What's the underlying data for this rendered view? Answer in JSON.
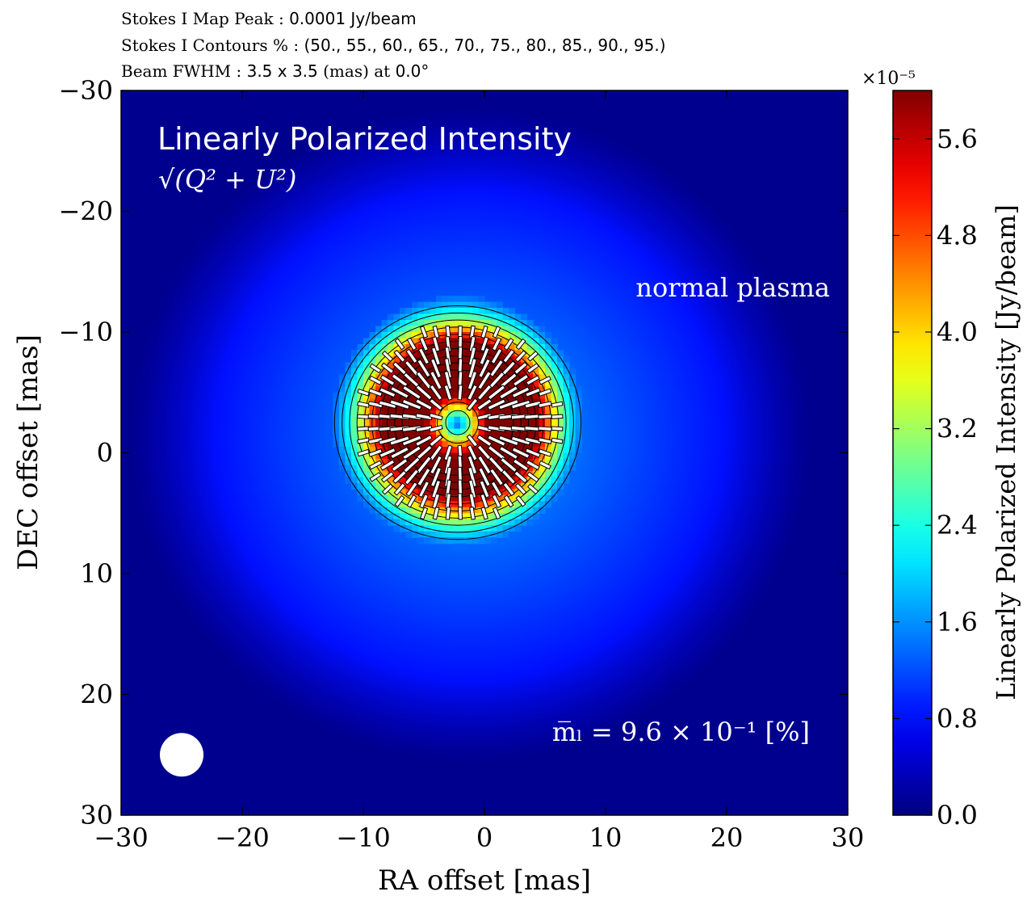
{
  "header": {
    "line1_label": "Stokes I Map Peak :",
    "line1_value": "0.0001 Jy/beam",
    "line2_label": "Stokes I Contours % :",
    "line2_value": "(50., 55., 60., 65., 70., 75., 80., 85., 90., 95.)",
    "line3_label": "Beam FWHM :",
    "line3_value": "3.5 x 3.5",
    "line3_unit": "(mas) at",
    "line3_angle": "0.0°"
  },
  "chart_data": {
    "type": "heatmap",
    "title": "Linearly Polarized Intensity",
    "formula": "√(Q² + U²)",
    "xlabel": "RA offset [mas]",
    "ylabel": "DEC offset [mas]",
    "xlim": [
      -30,
      30
    ],
    "ylim": [
      -30,
      30
    ],
    "y_inverted": true,
    "xticks": [
      -30,
      -20,
      -10,
      0,
      10,
      20,
      30
    ],
    "yticks": [
      -30,
      -20,
      -10,
      0,
      10,
      20,
      30
    ],
    "xtick_labels": [
      "−30",
      "−20",
      "−10",
      "0",
      "10",
      "20",
      "30"
    ],
    "ytick_labels": [
      "−30",
      "−20",
      "−10",
      "0",
      "10",
      "20",
      "30"
    ],
    "colormap": "jet",
    "colorbar": {
      "label": "Linearly Polarized Intensity [Jy/beam]",
      "multiplier": "×10⁻⁵",
      "vmin": 0.0,
      "vmax": 6.0,
      "ticks": [
        0.0,
        0.8,
        1.6,
        2.4,
        3.2,
        4.0,
        4.8,
        5.6
      ],
      "tick_labels": [
        "0.0",
        "0.8",
        "1.6",
        "2.4",
        "3.2",
        "4.0",
        "4.8",
        "5.6"
      ]
    },
    "source": {
      "center": [
        -2.2,
        -2.5
      ],
      "ring_radius": 4.6,
      "ring_peak": 6.0
    },
    "contour_levels_percent": [
      50,
      55,
      60,
      65,
      70,
      75,
      80,
      85,
      90,
      95
    ],
    "annotations": {
      "plasma_label": "normal plasma",
      "mean_pol_label": "m̅ₗ =  9.6 × 10⁻¹ [%]"
    },
    "beam": {
      "fwhm_mas": 3.5,
      "angle_deg": 0.0,
      "position": [
        -25,
        25
      ]
    }
  }
}
